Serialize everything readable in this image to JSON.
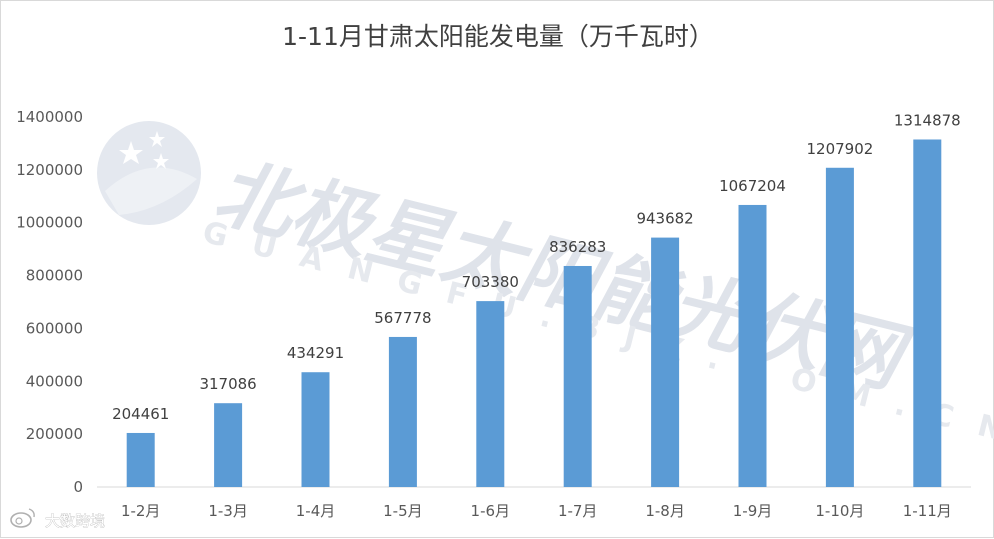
{
  "chart_data": {
    "type": "bar",
    "title": "1-11月甘肃太阳能发电量（万千瓦时）",
    "categories": [
      "1-2月",
      "1-3月",
      "1-4月",
      "1-5月",
      "1-6月",
      "1-7月",
      "1-8月",
      "1-9月",
      "1-10月",
      "1-11月"
    ],
    "values": [
      204461,
      317086,
      434291,
      567778,
      703380,
      836283,
      943682,
      1067204,
      1207902,
      1314878
    ],
    "xlabel": "",
    "ylabel": "",
    "ylim": [
      0,
      1400000
    ],
    "yticks": [
      0,
      200000,
      400000,
      600000,
      800000,
      1000000,
      1200000,
      1400000
    ],
    "grid": false,
    "bar_color": "#5b9bd5",
    "data_labels": true
  },
  "watermark": {
    "text_cn": "北极星太阳能光伏网",
    "text_en": "GUANGFU.BJX.COM.CN"
  },
  "source_mark": {
    "icon": "weibo-icon",
    "text": "大数跨境"
  }
}
